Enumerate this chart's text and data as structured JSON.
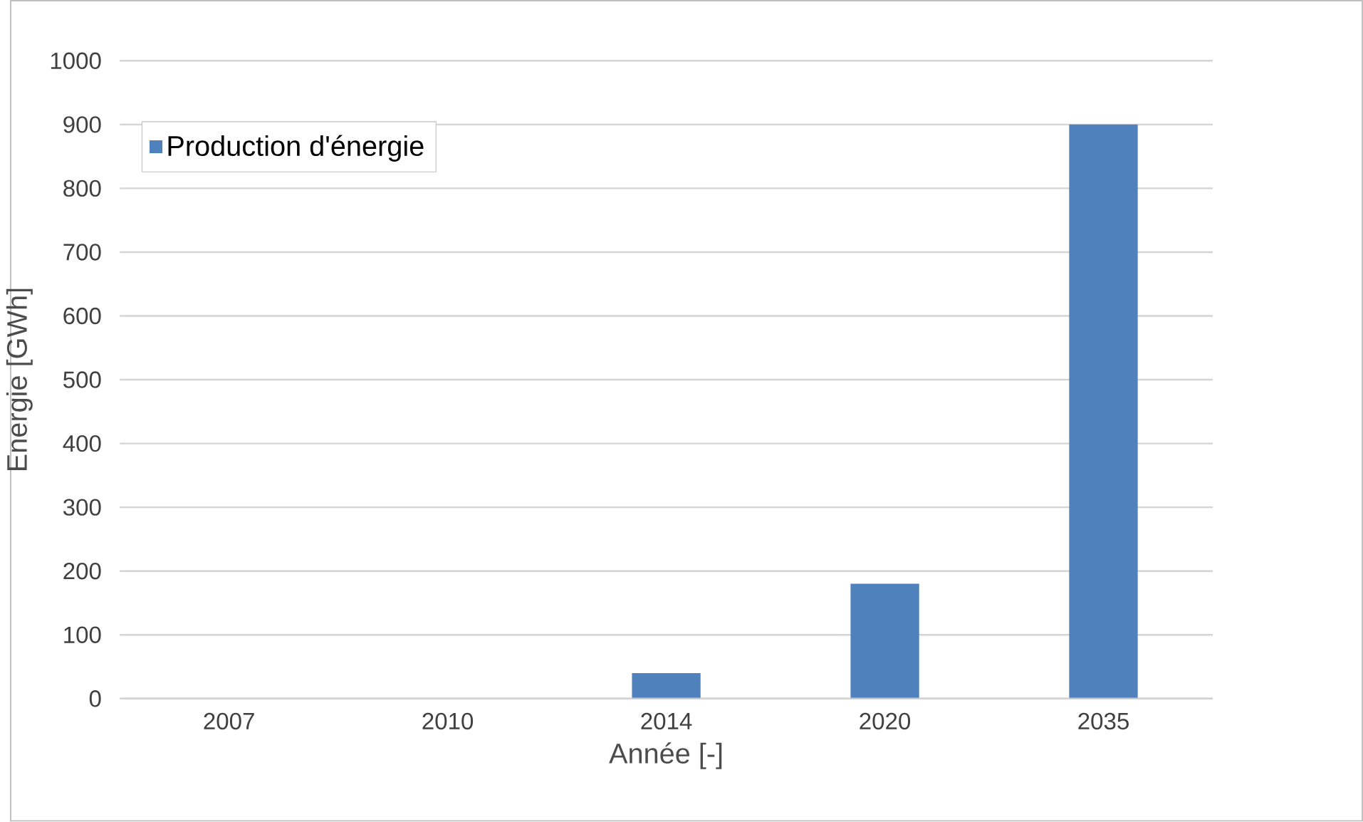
{
  "chart_data": {
    "type": "bar",
    "xlabel": "Année [-]",
    "ylabel": "Energie [GWh]",
    "categories": [
      "2007",
      "2010",
      "2014",
      "2020",
      "2035"
    ],
    "series": [
      {
        "name": "Production d'énergie",
        "color": "#4f81bd",
        "values": [
          0,
          0,
          40,
          180,
          900
        ]
      }
    ],
    "ylim": [
      0,
      1000
    ],
    "yticks": [
      0,
      100,
      200,
      300,
      400,
      500,
      600,
      700,
      800,
      900,
      1000
    ],
    "grid": "y",
    "legend": "top left"
  }
}
